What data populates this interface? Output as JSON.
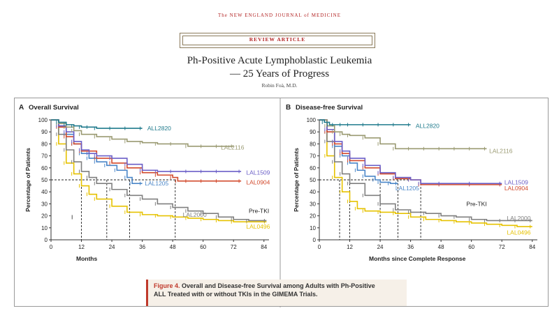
{
  "journal": "The NEW ENGLAND JOURNAL of MEDICINE",
  "review_label": "REVIEW ARTICLE",
  "title_line1": "Ph-Positive Acute Lymphoblastic Leukemia",
  "title_line2": "— 25 Years of Progress",
  "author": "Robin Foà, M.D.",
  "caption": {
    "figure_label": "Figure 4.",
    "text_line1": "Overall and Disease-free Survival among Adults with Ph-Positive",
    "text_line2": "ALL Treated with or without TKIs in the GIMEMA Trials."
  },
  "colors": {
    "ALL2820": "#1f7a8c",
    "LAL2116": "#9a9a72",
    "LAL1509": "#6b5fc7",
    "LAL0904": "#d24a2c",
    "LAL1205": "#4a86c8",
    "LAL2000": "#7f7f7f",
    "LAL0496": "#e6c200"
  },
  "chart_data": [
    {
      "type": "line",
      "panel": "A",
      "title": "Overall Survival",
      "xlabel": "Months",
      "ylabel": "Percentage of Patients",
      "xlim": [
        0,
        86
      ],
      "ylim": [
        0,
        100
      ],
      "xticks": [
        0,
        12,
        24,
        36,
        48,
        60,
        72,
        84
      ],
      "yticks": [
        0,
        10,
        20,
        30,
        40,
        50,
        60,
        70,
        80,
        90,
        100
      ],
      "median_line": 50,
      "median_markers": [
        12,
        22,
        31,
        49
      ],
      "annotations": [
        {
          "text": "Pre-TKI",
          "x": 78,
          "y": 24
        },
        {
          "text": "I",
          "x": 8,
          "y": 19
        }
      ],
      "series": [
        {
          "name": "ALL2820",
          "x": [
            0,
            3,
            6,
            9,
            12,
            15,
            18,
            24,
            30,
            36
          ],
          "y": [
            100,
            98,
            96,
            95,
            94,
            94,
            93,
            93,
            93,
            93
          ],
          "label_x": 38,
          "label_y": 93
        },
        {
          "name": "LAL2116",
          "x": [
            0,
            3,
            6,
            9,
            12,
            18,
            24,
            30,
            36,
            42,
            48,
            54,
            60,
            66,
            72
          ],
          "y": [
            100,
            97,
            94,
            91,
            88,
            86,
            84,
            82,
            81,
            80,
            80,
            78,
            78,
            78,
            78
          ],
          "label_x": 67,
          "label_y": 77
        },
        {
          "name": "LAL1509",
          "x": [
            0,
            3,
            6,
            9,
            12,
            15,
            18,
            24,
            30,
            36,
            42,
            48,
            54,
            60,
            66,
            75
          ],
          "y": [
            100,
            95,
            90,
            82,
            75,
            72,
            70,
            68,
            63,
            58,
            57,
            57,
            57,
            57,
            57,
            57
          ],
          "label_x": 77,
          "label_y": 56
        },
        {
          "name": "LAL0904",
          "x": [
            0,
            3,
            6,
            9,
            12,
            18,
            24,
            30,
            36,
            42,
            48,
            50,
            54,
            60,
            66,
            75
          ],
          "y": [
            100,
            94,
            86,
            80,
            74,
            68,
            64,
            60,
            56,
            54,
            52,
            49,
            49,
            49,
            49,
            49
          ],
          "label_x": 77,
          "label_y": 48
        },
        {
          "name": "LAL1205",
          "x": [
            0,
            3,
            6,
            9,
            12,
            15,
            18,
            22,
            26,
            30,
            32,
            36
          ],
          "y": [
            100,
            95,
            88,
            80,
            72,
            68,
            65,
            62,
            58,
            52,
            47,
            47
          ],
          "label_x": 37,
          "label_y": 47
        },
        {
          "name": "LAL2000",
          "x": [
            0,
            3,
            6,
            9,
            12,
            15,
            18,
            24,
            30,
            36,
            42,
            48,
            54,
            60,
            66,
            72,
            78,
            85
          ],
          "y": [
            100,
            88,
            75,
            65,
            57,
            52,
            47,
            42,
            37,
            34,
            30,
            27,
            24,
            22,
            19,
            17,
            16,
            16
          ],
          "label_x": 52,
          "label_y": 21
        },
        {
          "name": "LAL0496",
          "x": [
            0,
            3,
            6,
            9,
            12,
            15,
            18,
            24,
            30,
            36,
            42,
            48,
            54,
            60,
            66,
            72,
            78,
            85
          ],
          "y": [
            100,
            80,
            64,
            55,
            45,
            38,
            34,
            28,
            23,
            21,
            20,
            19,
            18,
            17,
            16,
            15,
            15,
            15
          ],
          "label_x": 77,
          "label_y": 11
        }
      ]
    },
    {
      "type": "line",
      "panel": "B",
      "title": "Disease-free Survival",
      "xlabel": "Months since Complete Response",
      "ylabel": "Percentage of Patients",
      "xlim": [
        0,
        86
      ],
      "ylim": [
        0,
        100
      ],
      "xticks": [
        0,
        12,
        24,
        36,
        48,
        60,
        72,
        84
      ],
      "yticks": [
        0,
        10,
        20,
        30,
        40,
        50,
        60,
        70,
        80,
        90,
        100
      ],
      "median_line": 50,
      "median_markers": [
        8,
        12,
        24,
        31,
        40
      ],
      "annotations": [
        {
          "text": "Pre-TKI",
          "x": 58,
          "y": 30
        }
      ],
      "series": [
        {
          "name": "ALL2820",
          "x": [
            0,
            2,
            4,
            6,
            9,
            12,
            18,
            24,
            30,
            36
          ],
          "y": [
            100,
            98,
            96,
            96,
            96,
            96,
            96,
            96,
            96,
            96
          ],
          "label_x": 38,
          "label_y": 95
        },
        {
          "name": "LAL2116",
          "x": [
            0,
            3,
            6,
            9,
            12,
            18,
            24,
            30,
            36,
            42,
            48,
            54,
            60,
            66
          ],
          "y": [
            100,
            95,
            90,
            88,
            87,
            85,
            80,
            76,
            76,
            76,
            76,
            76,
            76,
            76
          ],
          "label_x": 67,
          "label_y": 74
        },
        {
          "name": "LAL1509",
          "x": [
            0,
            3,
            6,
            9,
            12,
            18,
            24,
            30,
            36,
            40,
            48,
            60,
            72
          ],
          "y": [
            100,
            92,
            82,
            74,
            68,
            62,
            56,
            52,
            50,
            47,
            47,
            47,
            47
          ],
          "label_x": 73,
          "label_y": 48
        },
        {
          "name": "LAL0904",
          "x": [
            0,
            3,
            6,
            9,
            12,
            18,
            24,
            30,
            36,
            40,
            48,
            60,
            72
          ],
          "y": [
            100,
            90,
            80,
            72,
            66,
            60,
            55,
            51,
            50,
            46,
            46,
            46,
            46
          ],
          "label_x": 73,
          "label_y": 43
        },
        {
          "name": "LAL1205",
          "x": [
            0,
            3,
            6,
            9,
            12,
            15,
            18,
            22,
            24,
            28,
            31
          ],
          "y": [
            100,
            90,
            78,
            70,
            64,
            58,
            53,
            50,
            48,
            47,
            47
          ],
          "label_x": 30,
          "label_y": 43
        },
        {
          "name": "LAL2000",
          "x": [
            0,
            3,
            6,
            9,
            12,
            18,
            24,
            30,
            36,
            42,
            48,
            54,
            60,
            66,
            72,
            78,
            84
          ],
          "y": [
            100,
            82,
            65,
            55,
            47,
            37,
            30,
            25,
            23,
            22,
            20,
            19,
            17,
            16,
            16,
            16,
            16
          ],
          "label_x": 74,
          "label_y": 18
        },
        {
          "name": "LAL0496",
          "x": [
            0,
            3,
            6,
            9,
            12,
            15,
            18,
            24,
            30,
            36,
            42,
            48,
            54,
            60,
            66,
            72,
            78,
            84
          ],
          "y": [
            100,
            70,
            52,
            40,
            32,
            26,
            24,
            23,
            22,
            19,
            17,
            16,
            15,
            14,
            13,
            12,
            11,
            11
          ],
          "label_x": 74,
          "label_y": 6
        }
      ]
    }
  ]
}
